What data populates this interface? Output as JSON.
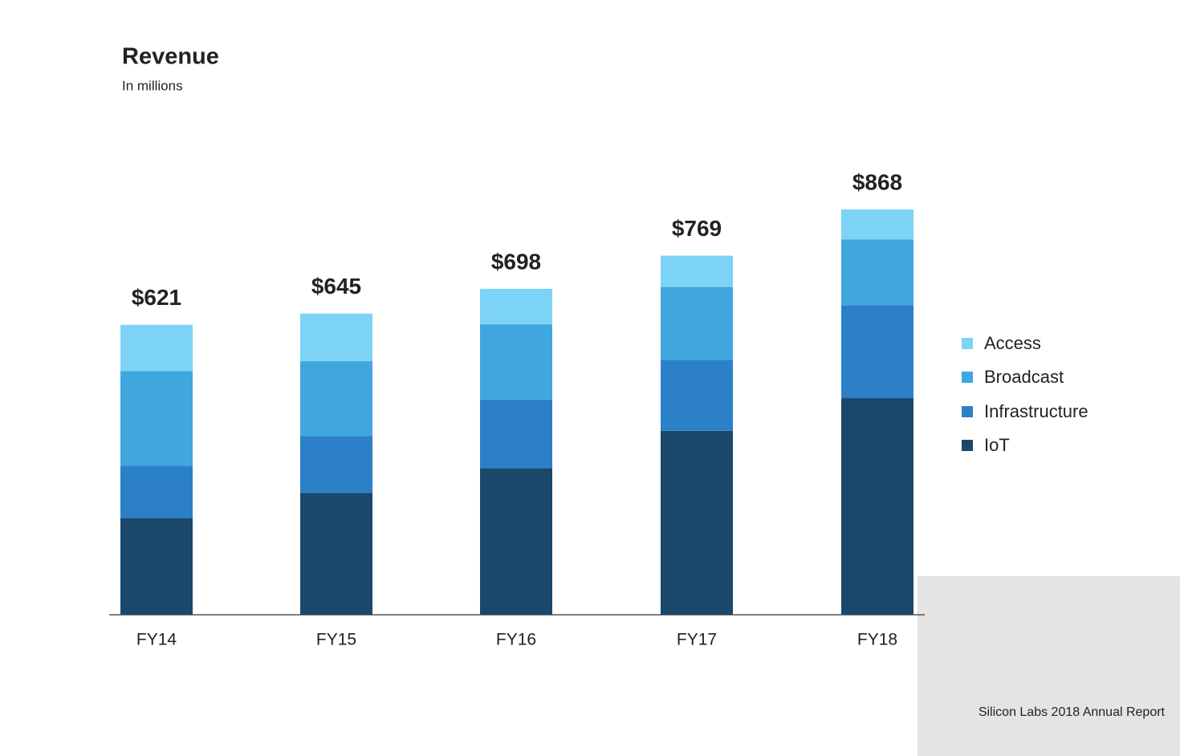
{
  "chart_data": {
    "type": "stacked-bar",
    "title": "Revenue",
    "subtitle": "In millions",
    "categories": [
      "FY14",
      "FY15",
      "FY16",
      "FY17",
      "FY18"
    ],
    "series": [
      {
        "name": "IoT",
        "color": "#1b476b",
        "values": [
          207,
          261,
          314,
          394,
          464
        ]
      },
      {
        "name": "Infrastructure",
        "color": "#2b80c8",
        "values": [
          112,
          122,
          147,
          152,
          199
        ]
      },
      {
        "name": "Broadcast",
        "color": "#3fa7de",
        "values": [
          203,
          160,
          161,
          156,
          141
        ]
      },
      {
        "name": "Access",
        "color": "#7dd3f5",
        "values": [
          99,
          102,
          76,
          67,
          64
        ]
      }
    ],
    "totals": [
      621,
      645,
      698,
      769,
      868
    ],
    "total_labels": [
      "$621",
      "$645",
      "$698",
      "$769",
      "$868"
    ],
    "footer": "Silicon Labs 2018 Annual Report"
  }
}
